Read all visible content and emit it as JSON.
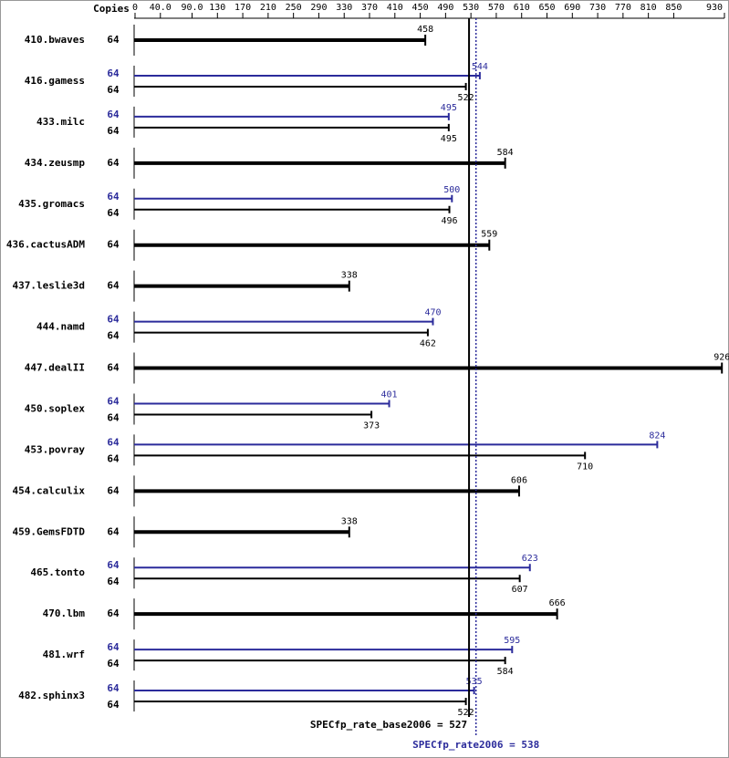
{
  "chart_data": {
    "type": "bar",
    "orientation": "horizontal",
    "copies_header": "Copies",
    "categories": [
      "410.bwaves",
      "416.gamess",
      "433.milc",
      "434.zeusmp",
      "435.gromacs",
      "436.cactusADM",
      "437.leslie3d",
      "444.namd",
      "447.dealII",
      "450.soplex",
      "453.povray",
      "454.calculix",
      "459.GemsFDTD",
      "465.tonto",
      "470.lbm",
      "481.wrf",
      "482.sphinx3"
    ],
    "series": [
      {
        "color": "#000000",
        "values": [
          458,
          522,
          495,
          584,
          496,
          559,
          338,
          462,
          926,
          373,
          710,
          606,
          338,
          607,
          666,
          584,
          522
        ],
        "copies": [
          64,
          64,
          64,
          64,
          64,
          64,
          64,
          64,
          64,
          64,
          64,
          64,
          64,
          64,
          64,
          64,
          64
        ]
      },
      {
        "color": "#2b2b9b",
        "values": [
          null,
          544,
          495,
          null,
          500,
          null,
          null,
          470,
          null,
          401,
          824,
          null,
          null,
          623,
          null,
          595,
          535
        ],
        "copies": [
          null,
          64,
          64,
          null,
          64,
          null,
          null,
          64,
          null,
          64,
          64,
          null,
          null,
          64,
          null,
          64,
          64
        ]
      }
    ],
    "xlim": [
      0,
      930
    ],
    "xticks": [
      0,
      {
        "value": 40,
        "label": "40.0"
      },
      {
        "value": 90,
        "label": "90.0"
      },
      130,
      170,
      210,
      250,
      290,
      330,
      370,
      410,
      450,
      490,
      530,
      570,
      610,
      650,
      690,
      730,
      770,
      810,
      850,
      930
    ],
    "reference_lines": [
      {
        "value": 527,
        "label": "SPECfp_rate_base2006 = 527",
        "color": "#000000",
        "style": "solid"
      },
      {
        "value": 538,
        "label": "SPECfp_rate2006 = 538",
        "color": "#2b2b9b",
        "style": "dotted"
      }
    ]
  }
}
